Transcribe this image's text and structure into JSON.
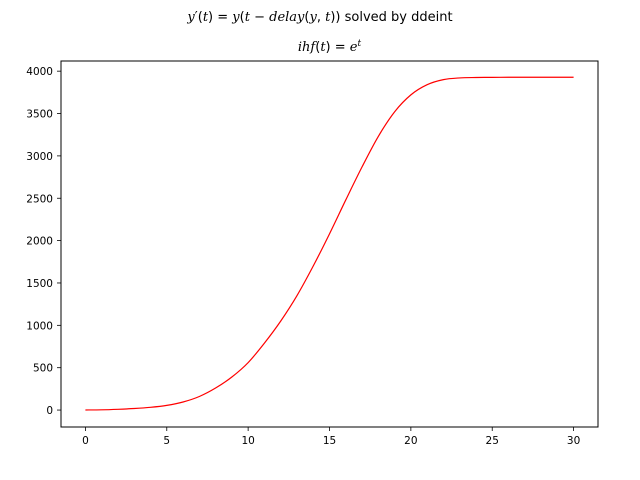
{
  "figure": {
    "suptitle_parts": [
      {
        "text": "y",
        "style": "math"
      },
      {
        "text": "′",
        "style": "plain"
      },
      {
        "text": "(",
        "style": "plain"
      },
      {
        "text": "t",
        "style": "math"
      },
      {
        "text": ") = ",
        "style": "plain"
      },
      {
        "text": "y",
        "style": "math"
      },
      {
        "text": "(",
        "style": "plain"
      },
      {
        "text": "t",
        "style": "math"
      },
      {
        "text": " − ",
        "style": "plain"
      },
      {
        "text": "delay",
        "style": "math"
      },
      {
        "text": "(",
        "style": "plain"
      },
      {
        "text": "y",
        "style": "math"
      },
      {
        "text": ", ",
        "style": "plain"
      },
      {
        "text": "t",
        "style": "math"
      },
      {
        "text": ")) solved by ddeint",
        "style": "plain"
      }
    ],
    "title_parts": [
      {
        "text": "ihf",
        "style": "math"
      },
      {
        "text": "(",
        "style": "plain"
      },
      {
        "text": "t",
        "style": "math"
      },
      {
        "text": ") = ",
        "style": "plain"
      },
      {
        "text": "e",
        "style": "math"
      },
      {
        "text": "t",
        "style": "math-sup"
      }
    ]
  },
  "chart_data": {
    "type": "line",
    "xlim": [
      -1.5,
      31.5
    ],
    "ylim": [
      -200,
      4120
    ],
    "xticks": [
      0,
      5,
      10,
      15,
      20,
      25,
      30
    ],
    "yticks": [
      0,
      500,
      1000,
      1500,
      2000,
      2500,
      3000,
      3500,
      4000
    ],
    "grid": false,
    "series": [
      {
        "color": "#ff0000",
        "x": [
          0,
          1,
          2,
          3,
          4,
          5,
          6,
          7,
          8,
          9,
          10,
          11,
          12,
          13,
          14,
          15,
          16,
          17,
          18,
          19,
          20,
          21,
          22,
          23,
          24,
          25,
          26,
          27,
          28,
          29,
          30
        ],
        "y": [
          1,
          3,
          9,
          18,
          32,
          55,
          95,
          160,
          260,
          390,
          560,
          790,
          1050,
          1350,
          1700,
          2080,
          2480,
          2870,
          3230,
          3520,
          3720,
          3840,
          3900,
          3920,
          3925,
          3927,
          3928,
          3928,
          3928,
          3928,
          3928
        ]
      }
    ]
  }
}
